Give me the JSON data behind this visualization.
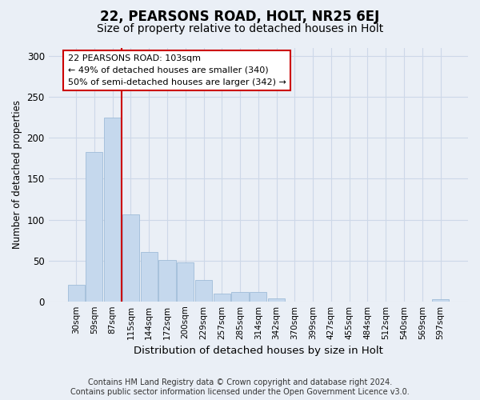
{
  "title": "22, PEARSONS ROAD, HOLT, NR25 6EJ",
  "subtitle": "Size of property relative to detached houses in Holt",
  "xlabel": "Distribution of detached houses by size in Holt",
  "ylabel": "Number of detached properties",
  "bar_labels": [
    "30sqm",
    "59sqm",
    "87sqm",
    "115sqm",
    "144sqm",
    "172sqm",
    "200sqm",
    "229sqm",
    "257sqm",
    "285sqm",
    "314sqm",
    "342sqm",
    "370sqm",
    "399sqm",
    "427sqm",
    "455sqm",
    "484sqm",
    "512sqm",
    "540sqm",
    "569sqm",
    "597sqm"
  ],
  "bar_values": [
    20,
    183,
    225,
    106,
    60,
    51,
    48,
    26,
    9,
    11,
    11,
    4,
    0,
    0,
    0,
    0,
    0,
    0,
    0,
    0,
    3
  ],
  "bar_color": "#c5d8ed",
  "bar_edgecolor": "#a0bcd8",
  "vline_color": "#cc0000",
  "annotation_lines": [
    "22 PEARSONS ROAD: 103sqm",
    "← 49% of detached houses are smaller (340)",
    "50% of semi-detached houses are larger (342) →"
  ],
  "annotation_box_color": "#ffffff",
  "annotation_box_edgecolor": "#cc0000",
  "ylim": [
    0,
    310
  ],
  "yticks": [
    0,
    50,
    100,
    150,
    200,
    250,
    300
  ],
  "grid_color": "#cdd8e8",
  "background_color": "#eaeff6",
  "footer_line1": "Contains HM Land Registry data © Crown copyright and database right 2024.",
  "footer_line2": "Contains public sector information licensed under the Open Government Licence v3.0.",
  "title_fontsize": 12,
  "subtitle_fontsize": 10,
  "xlabel_fontsize": 9.5,
  "ylabel_fontsize": 8.5,
  "tick_fontsize": 7.5,
  "annotation_fontsize": 8,
  "footer_fontsize": 7
}
